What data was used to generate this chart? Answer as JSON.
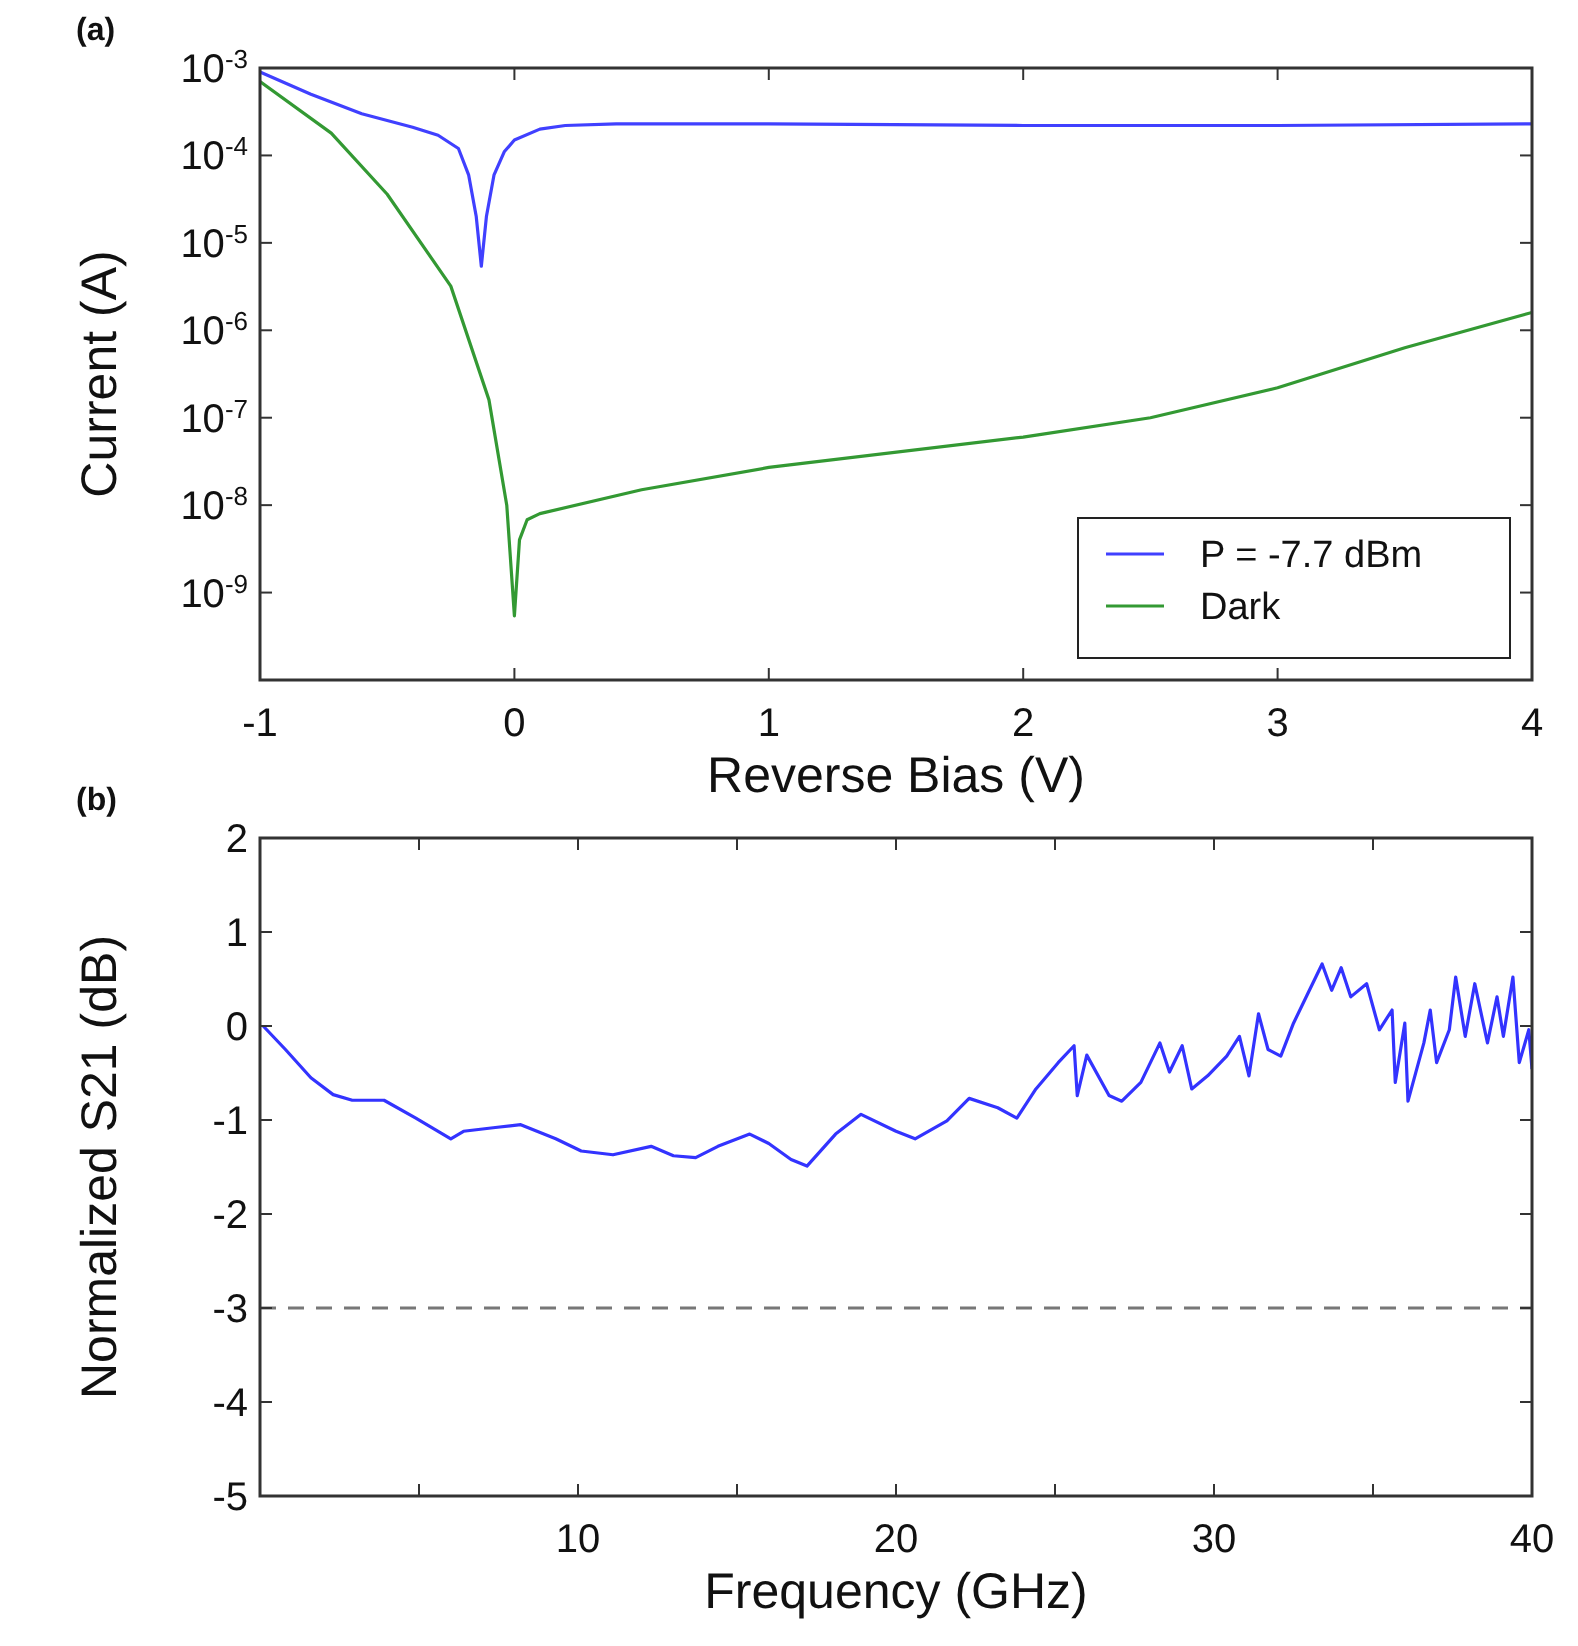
{
  "chart_data": [
    {
      "type": "line",
      "title": "(a)",
      "xlabel": "Reverse Bias (V)",
      "ylabel": "Current (A)",
      "log": "y",
      "xlim": [
        -1,
        4
      ],
      "xticks": [
        -1,
        0,
        1,
        2,
        3,
        4
      ],
      "ylim": [
        1e-10,
        0.001
      ],
      "yticks": [
        {
          "value": 0.001,
          "label": "10$^{-3}$"
        },
        {
          "value": 0.0001,
          "label": "10$^{-4}$"
        },
        {
          "value": 1e-05,
          "label": "10$^{-5}$"
        },
        {
          "value": 1e-06,
          "label": "10$^{-6}$"
        },
        {
          "value": 1e-07,
          "label": "10$^{-7}$"
        },
        {
          "value": 1e-08,
          "label": "10$^{-8}$"
        },
        {
          "value": 1e-09,
          "label": "10$^{-9}$"
        },
        {
          "value": 1e-10,
          "label": null
        }
      ],
      "legend": "bottom right",
      "series": [
        {
          "name": "P = -7.7 dBm",
          "color": "#4040ff",
          "x": [
            -1,
            -0.8,
            -0.6,
            -0.4,
            -0.3,
            -0.22,
            -0.18,
            -0.15,
            -0.13,
            -0.11,
            -0.08,
            -0.04,
            0,
            0.1,
            0.2,
            0.4,
            1,
            2,
            3,
            4
          ],
          "values": [
            0.0009,
            0.0005,
            0.0003,
            0.00021,
            0.00017,
            0.00012,
            6e-05,
            2e-05,
            5.4e-06,
            2e-05,
            6e-05,
            0.00011,
            0.00015,
            0.0002,
            0.00022,
            0.00023,
            0.00023,
            0.00022,
            0.00022,
            0.00023
          ]
        },
        {
          "name": "Dark",
          "color": "#339933",
          "x": [
            -1,
            -0.72,
            -0.5,
            -0.25,
            -0.1,
            -0.03,
            0,
            0.02,
            0.05,
            0.1,
            0.5,
            1,
            2,
            2.5,
            3,
            3.5,
            4
          ],
          "values": [
            0.0007,
            0.00018,
            3.6e-05,
            3.2e-06,
            1.6e-07,
            1e-08,
            5.4e-10,
            4e-09,
            6.8e-09,
            8e-09,
            1.5e-08,
            2.7e-08,
            6e-08,
            1e-07,
            2.2e-07,
            6.3e-07,
            1.6e-06
          ]
        }
      ]
    },
    {
      "type": "line",
      "title": "(b)",
      "xlabel": "Frequency (GHz)",
      "ylabel": "Normalized S21 (dB)",
      "xlim": [
        0,
        40
      ],
      "xticks": [
        {
          "value": 5,
          "label": null
        },
        10,
        {
          "value": 15,
          "label": null
        },
        20,
        {
          "value": 25,
          "label": null
        },
        30,
        {
          "value": 35,
          "label": null
        },
        40
      ],
      "ylim": [
        -5,
        2
      ],
      "yticks": [
        -5,
        -4,
        -3,
        -2,
        -1,
        0,
        1,
        2
      ],
      "ref_lines": [
        {
          "axis": "y",
          "value": -3,
          "color": "#777777",
          "line_style": "dashed"
        }
      ],
      "series": [
        {
          "color": "#3333ff",
          "x": [
            0.1,
            0.8,
            1.6,
            2.3,
            2.9,
            3.9,
            4.9,
            6.0,
            6.4,
            7.4,
            8.2,
            9.3,
            10.1,
            11.1,
            12.3,
            13.0,
            13.7,
            14.4,
            15.4,
            16.0,
            16.7,
            17.2,
            18.1,
            18.9,
            20.0,
            20.6,
            21.6,
            22.3,
            23.2,
            23.8,
            24.4,
            25.1,
            25.6,
            25.7,
            26.0,
            26.7,
            27.1,
            27.7,
            28.3,
            28.6,
            29.0,
            29.3,
            29.8,
            30.4,
            30.8,
            31.1,
            31.4,
            31.7,
            32.1,
            32.5,
            33.0,
            33.4,
            33.7,
            34.0,
            34.3,
            34.8,
            35.2,
            35.6,
            35.7,
            36.0,
            36.1,
            36.6,
            36.8,
            37.0,
            37.4,
            37.6,
            37.9,
            38.2,
            38.6,
            38.9,
            39.1,
            39.4,
            39.6,
            39.9,
            40.0
          ],
          "values": [
            0.0,
            -0.25,
            -0.55,
            -0.73,
            -0.79,
            -0.79,
            -0.98,
            -1.2,
            -1.12,
            -1.08,
            -1.05,
            -1.2,
            -1.33,
            -1.37,
            -1.28,
            -1.38,
            -1.4,
            -1.28,
            -1.15,
            -1.25,
            -1.42,
            -1.49,
            -1.15,
            -0.94,
            -1.12,
            -1.2,
            -1.01,
            -0.77,
            -0.87,
            -0.98,
            -0.67,
            -0.39,
            -0.21,
            -0.74,
            -0.31,
            -0.74,
            -0.8,
            -0.6,
            -0.18,
            -0.49,
            -0.21,
            -0.67,
            -0.53,
            -0.32,
            -0.11,
            -0.53,
            0.13,
            -0.25,
            -0.32,
            0.03,
            0.38,
            0.66,
            0.38,
            0.62,
            0.31,
            0.45,
            -0.04,
            0.17,
            -0.6,
            0.03,
            -0.8,
            -0.18,
            0.17,
            -0.39,
            -0.04,
            0.52,
            -0.11,
            0.45,
            -0.18,
            0.31,
            -0.11,
            0.52,
            -0.39,
            -0.04,
            -0.46
          ]
        }
      ]
    }
  ]
}
